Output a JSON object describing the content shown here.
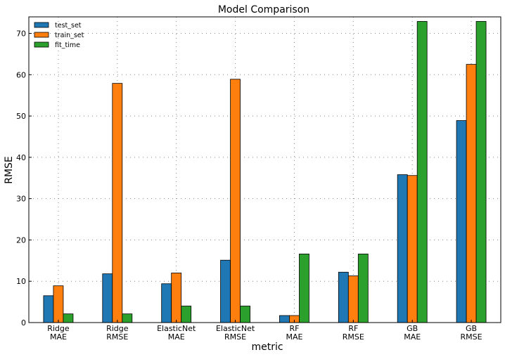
{
  "colors": {
    "test_set": "#1f77b4",
    "train_set": "#ff7f0e",
    "fit_time": "#2ca02c",
    "frame": "#000000"
  },
  "chart_data": {
    "type": "bar",
    "title": "Model Comparison",
    "xlabel": "metric",
    "ylabel": "RMSE",
    "categories": [
      [
        "Ridge",
        "MAE"
      ],
      [
        "Ridge",
        "RMSE"
      ],
      [
        "ElasticNet",
        "MAE"
      ],
      [
        "ElasticNet",
        "RMSE"
      ],
      [
        "RF",
        "MAE"
      ],
      [
        "RF",
        "RMSE"
      ],
      [
        "GB",
        "MAE"
      ],
      [
        "GB",
        "RMSE"
      ]
    ],
    "series": [
      {
        "name": "test_set",
        "color": "#1f77b4",
        "values": [
          6.5,
          11.8,
          9.4,
          15.1,
          1.7,
          12.2,
          35.8,
          48.9
        ]
      },
      {
        "name": "train_set",
        "color": "#ff7f0e",
        "values": [
          8.9,
          57.9,
          12.0,
          58.9,
          1.7,
          11.3,
          35.6,
          62.5
        ]
      },
      {
        "name": "fit_time",
        "color": "#2ca02c",
        "values": [
          2.1,
          2.1,
          4.0,
          4.0,
          16.6,
          16.6,
          72.9,
          72.9
        ]
      }
    ],
    "yticks": [
      0,
      10,
      20,
      30,
      40,
      50,
      60,
      70
    ],
    "ylim": [
      0,
      74
    ],
    "grid": true,
    "grid_style": "dotted",
    "legend_position": "top-left"
  }
}
